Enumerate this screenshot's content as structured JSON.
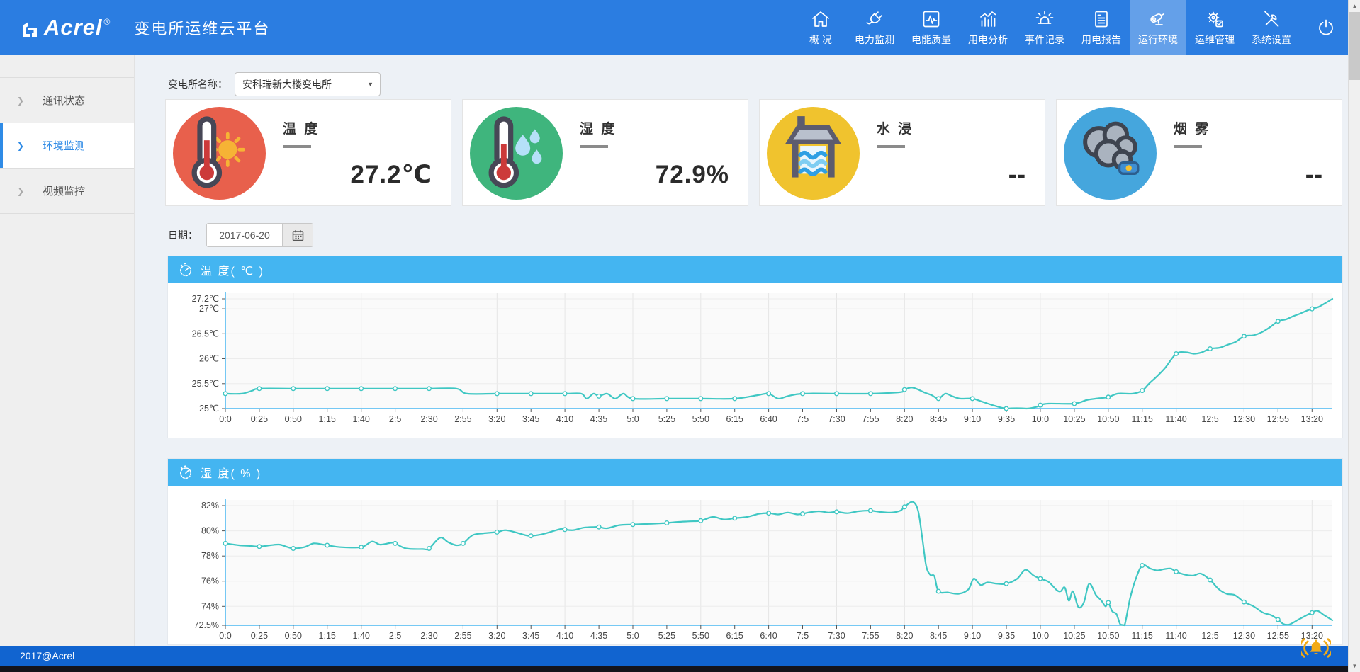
{
  "header": {
    "brand": "Acrel",
    "brand_reg": "®",
    "title": "变电所运维云平台",
    "nav": [
      {
        "id": "overview",
        "label": "概 况",
        "icon": "home-icon"
      },
      {
        "id": "power-monitor",
        "label": "电力监测",
        "icon": "plug-icon"
      },
      {
        "id": "power-quality",
        "label": "电能质量",
        "icon": "pulse-box-icon"
      },
      {
        "id": "usage-analysis",
        "label": "用电分析",
        "icon": "bar-chart-icon"
      },
      {
        "id": "event-log",
        "label": "事件记录",
        "icon": "siren-icon"
      },
      {
        "id": "usage-report",
        "label": "用电报告",
        "icon": "report-icon"
      },
      {
        "id": "environment",
        "label": "运行环境",
        "icon": "cctv-icon",
        "active": true
      },
      {
        "id": "om-management",
        "label": "运维管理",
        "icon": "gear-icon"
      },
      {
        "id": "system-settings",
        "label": "系统设置",
        "icon": "tools-icon"
      }
    ],
    "colors": {
      "header_bg": "#2b7de1",
      "active_bg": "rgba(255,255,255,0.27)"
    }
  },
  "sidebar": {
    "items": [
      {
        "id": "comm-status",
        "label": "通讯状态",
        "active": false
      },
      {
        "id": "env-monitor",
        "label": "环境监测",
        "active": true
      },
      {
        "id": "video-surveillance",
        "label": "视频监控",
        "active": false
      }
    ]
  },
  "toolbar": {
    "station_label": "变电所名称：",
    "station_value": "安科瑞新大楼变电所"
  },
  "date_row": {
    "label": "日期：",
    "value": "2017-06-20"
  },
  "cards": [
    {
      "id": "temperature",
      "title": "温 度",
      "value": "27.2℃",
      "icon": "thermometer-sun-icon",
      "circle_color": "#e8604c"
    },
    {
      "id": "humidity",
      "title": "湿 度",
      "value": "72.9%",
      "icon": "thermometer-drops-icon",
      "circle_color": "#3fb57d"
    },
    {
      "id": "water-leak",
      "title": "水 浸",
      "value": "--",
      "icon": "water-tank-icon",
      "circle_color": "#f0c32e"
    },
    {
      "id": "smoke",
      "title": "烟 雾",
      "value": "--",
      "icon": "smoke-icon",
      "circle_color": "#45a6dd"
    }
  ],
  "footer": {
    "copyright": "2017@Acrel"
  },
  "chart_data": [
    {
      "type": "line",
      "title": "温 度( ℃ )",
      "header_icon": "stopwatch-icon",
      "line_color": "#3fc7c3",
      "axis_color": "#49b7f1",
      "y_min": 25,
      "x_max_minutes": 815,
      "x_labels": [
        "0:0",
        "0:25",
        "0:50",
        "1:15",
        "1:40",
        "2:5",
        "2:30",
        "2:55",
        "3:20",
        "3:45",
        "4:10",
        "4:35",
        "5:0",
        "5:25",
        "5:50",
        "6:15",
        "6:40",
        "7:5",
        "7:30",
        "7:55",
        "8:20",
        "8:45",
        "9:10",
        "9:35",
        "10:0",
        "10:25",
        "10:50",
        "11:15",
        "11:40",
        "12:5",
        "12:30",
        "12:55",
        "13:20"
      ],
      "y_ticks": [
        {
          "value": 27.2,
          "label": "27.2℃"
        },
        {
          "value": 27,
          "label": "27℃"
        },
        {
          "value": 26.5,
          "label": "26.5℃"
        },
        {
          "value": 26,
          "label": "26℃"
        },
        {
          "value": 25.5,
          "label": "25.5℃"
        },
        {
          "value": 25,
          "label": "25℃"
        }
      ],
      "points": [
        [
          0,
          25.3
        ],
        [
          12,
          25.3
        ],
        [
          20,
          25.36
        ],
        [
          25,
          25.4
        ],
        [
          50,
          25.4
        ],
        [
          75,
          25.4
        ],
        [
          100,
          25.4
        ],
        [
          125,
          25.4
        ],
        [
          150,
          25.4
        ],
        [
          170,
          25.4
        ],
        [
          178,
          25.3
        ],
        [
          200,
          25.3
        ],
        [
          225,
          25.3
        ],
        [
          250,
          25.3
        ],
        [
          262,
          25.3
        ],
        [
          266,
          25.2
        ],
        [
          271,
          25.3
        ],
        [
          275,
          25.25
        ],
        [
          281,
          25.3
        ],
        [
          287,
          25.2
        ],
        [
          293,
          25.3
        ],
        [
          300,
          25.2
        ],
        [
          325,
          25.2
        ],
        [
          350,
          25.2
        ],
        [
          375,
          25.2
        ],
        [
          392,
          25.27
        ],
        [
          400,
          25.3
        ],
        [
          407,
          25.2
        ],
        [
          414,
          25.25
        ],
        [
          425,
          25.3
        ],
        [
          450,
          25.3
        ],
        [
          475,
          25.3
        ],
        [
          497,
          25.33
        ],
        [
          500,
          25.38
        ],
        [
          506,
          25.42
        ],
        [
          515,
          25.32
        ],
        [
          520,
          25.27
        ],
        [
          525,
          25.2
        ],
        [
          530,
          25.3
        ],
        [
          535,
          25.25
        ],
        [
          541,
          25.2
        ],
        [
          550,
          25.2
        ],
        [
          558,
          25.13
        ],
        [
          566,
          25.06
        ],
        [
          575,
          25.0
        ],
        [
          590,
          25.0
        ],
        [
          598,
          25.04
        ],
        [
          600,
          25.07
        ],
        [
          606,
          25.1
        ],
        [
          625,
          25.1
        ],
        [
          634,
          25.17
        ],
        [
          641,
          25.2
        ],
        [
          650,
          25.23
        ],
        [
          657,
          25.3
        ],
        [
          668,
          25.3
        ],
        [
          675,
          25.36
        ],
        [
          680,
          25.5
        ],
        [
          686,
          25.65
        ],
        [
          692,
          25.82
        ],
        [
          700,
          26.1
        ],
        [
          707,
          26.13
        ],
        [
          713,
          26.1
        ],
        [
          719,
          26.13
        ],
        [
          725,
          26.2
        ],
        [
          732,
          26.22
        ],
        [
          738,
          26.28
        ],
        [
          744,
          26.34
        ],
        [
          750,
          26.45
        ],
        [
          757,
          26.47
        ],
        [
          763,
          26.53
        ],
        [
          769,
          26.63
        ],
        [
          775,
          26.75
        ],
        [
          781,
          26.79
        ],
        [
          786,
          26.85
        ],
        [
          791,
          26.9
        ],
        [
          796,
          26.96
        ],
        [
          800,
          27.0
        ],
        [
          805,
          27.04
        ],
        [
          809,
          27.1
        ],
        [
          815,
          27.2
        ]
      ]
    },
    {
      "type": "line",
      "title": "湿 度( % )",
      "header_icon": "stopwatch-icon",
      "line_color": "#3fc7c3",
      "axis_color": "#49b7f1",
      "y_min": 72.5,
      "x_max_minutes": 815,
      "x_labels": [
        "0:0",
        "0:25",
        "0:50",
        "1:15",
        "1:40",
        "2:5",
        "2:30",
        "2:55",
        "3:20",
        "3:45",
        "4:10",
        "4:35",
        "5:0",
        "5:25",
        "5:50",
        "6:15",
        "6:40",
        "7:5",
        "7:30",
        "7:55",
        "8:20",
        "8:45",
        "9:10",
        "9:35",
        "10:0",
        "10:25",
        "10:50",
        "11:15",
        "11:40",
        "12:5",
        "12:30",
        "12:55",
        "13:20"
      ],
      "y_ticks": [
        {
          "value": 82,
          "label": "82%"
        },
        {
          "value": 80,
          "label": "80%"
        },
        {
          "value": 78,
          "label": "78%"
        },
        {
          "value": 76,
          "label": "76%"
        },
        {
          "value": 74,
          "label": "74%"
        },
        {
          "value": 72.5,
          "label": "72.5%"
        }
      ],
      "points": [
        [
          0,
          79.0
        ],
        [
          10,
          78.85
        ],
        [
          18,
          78.8
        ],
        [
          25,
          78.75
        ],
        [
          33,
          78.85
        ],
        [
          40,
          78.9
        ],
        [
          46,
          78.7
        ],
        [
          50,
          78.6
        ],
        [
          58,
          78.7
        ],
        [
          65,
          79.0
        ],
        [
          72,
          78.9
        ],
        [
          75,
          78.85
        ],
        [
          85,
          78.7
        ],
        [
          100,
          78.7
        ],
        [
          108,
          79.15
        ],
        [
          114,
          78.9
        ],
        [
          122,
          79.05
        ],
        [
          125,
          79.0
        ],
        [
          133,
          78.6
        ],
        [
          145,
          78.55
        ],
        [
          150,
          78.6
        ],
        [
          158,
          79.45
        ],
        [
          164,
          79.1
        ],
        [
          170,
          78.85
        ],
        [
          175,
          79.0
        ],
        [
          182,
          79.65
        ],
        [
          190,
          79.8
        ],
        [
          200,
          79.9
        ],
        [
          206,
          80.05
        ],
        [
          213,
          79.9
        ],
        [
          221,
          79.65
        ],
        [
          225,
          79.6
        ],
        [
          232,
          79.7
        ],
        [
          239,
          79.9
        ],
        [
          247,
          80.15
        ],
        [
          250,
          80.1
        ],
        [
          256,
          80.05
        ],
        [
          264,
          80.25
        ],
        [
          272,
          80.3
        ],
        [
          275,
          80.3
        ],
        [
          281,
          80.2
        ],
        [
          290,
          80.45
        ],
        [
          300,
          80.5
        ],
        [
          312,
          80.55
        ],
        [
          322,
          80.6
        ],
        [
          325,
          80.62
        ],
        [
          333,
          80.7
        ],
        [
          342,
          80.75
        ],
        [
          350,
          80.8
        ],
        [
          359,
          81.1
        ],
        [
          367,
          80.9
        ],
        [
          375,
          81.0
        ],
        [
          384,
          81.1
        ],
        [
          393,
          81.35
        ],
        [
          400,
          81.4
        ],
        [
          407,
          81.3
        ],
        [
          414,
          81.45
        ],
        [
          421,
          81.3
        ],
        [
          425,
          81.35
        ],
        [
          429,
          81.45
        ],
        [
          437,
          81.55
        ],
        [
          444,
          81.45
        ],
        [
          450,
          81.5
        ],
        [
          458,
          81.4
        ],
        [
          466,
          81.55
        ],
        [
          475,
          81.6
        ],
        [
          482,
          81.5
        ],
        [
          490,
          81.45
        ],
        [
          497,
          81.6
        ],
        [
          500,
          81.9
        ],
        [
          506,
          82.3
        ],
        [
          510,
          81.6
        ],
        [
          513,
          79.5
        ],
        [
          516,
          77.2
        ],
        [
          519,
          76.5
        ],
        [
          522,
          76.4
        ],
        [
          525,
          75.2
        ],
        [
          532,
          75.1
        ],
        [
          540,
          75.0
        ],
        [
          547,
          75.35
        ],
        [
          551,
          76.2
        ],
        [
          556,
          75.7
        ],
        [
          561,
          75.9
        ],
        [
          568,
          75.8
        ],
        [
          575,
          75.8
        ],
        [
          583,
          76.2
        ],
        [
          589,
          76.9
        ],
        [
          595,
          76.45
        ],
        [
          600,
          76.2
        ],
        [
          606,
          75.95
        ],
        [
          612,
          75.3
        ],
        [
          615,
          75.2
        ],
        [
          618,
          75.5
        ],
        [
          621,
          74.45
        ],
        [
          624,
          75.2
        ],
        [
          628,
          73.95
        ],
        [
          632,
          74.3
        ],
        [
          636,
          75.8
        ],
        [
          641,
          74.9
        ],
        [
          645,
          74.45
        ],
        [
          648,
          74.0
        ],
        [
          650,
          74.3
        ],
        [
          653,
          73.6
        ],
        [
          656,
          73.4
        ],
        [
          659,
          72.55
        ],
        [
          662,
          72.5
        ],
        [
          666,
          74.6
        ],
        [
          670,
          76.1
        ],
        [
          675,
          77.25
        ],
        [
          681,
          77.0
        ],
        [
          686,
          76.85
        ],
        [
          691,
          76.95
        ],
        [
          696,
          77.0
        ],
        [
          700,
          76.75
        ],
        [
          707,
          76.5
        ],
        [
          713,
          76.45
        ],
        [
          718,
          76.6
        ],
        [
          725,
          76.1
        ],
        [
          731,
          75.4
        ],
        [
          737,
          75.0
        ],
        [
          743,
          74.9
        ],
        [
          750,
          74.35
        ],
        [
          757,
          74.0
        ],
        [
          764,
          73.5
        ],
        [
          770,
          73.3
        ],
        [
          775,
          72.95
        ],
        [
          779,
          72.6
        ],
        [
          783,
          72.55
        ],
        [
          790,
          72.95
        ],
        [
          797,
          73.35
        ],
        [
          800,
          73.5
        ],
        [
          804,
          73.65
        ],
        [
          809,
          73.3
        ],
        [
          815,
          72.9
        ]
      ]
    }
  ]
}
